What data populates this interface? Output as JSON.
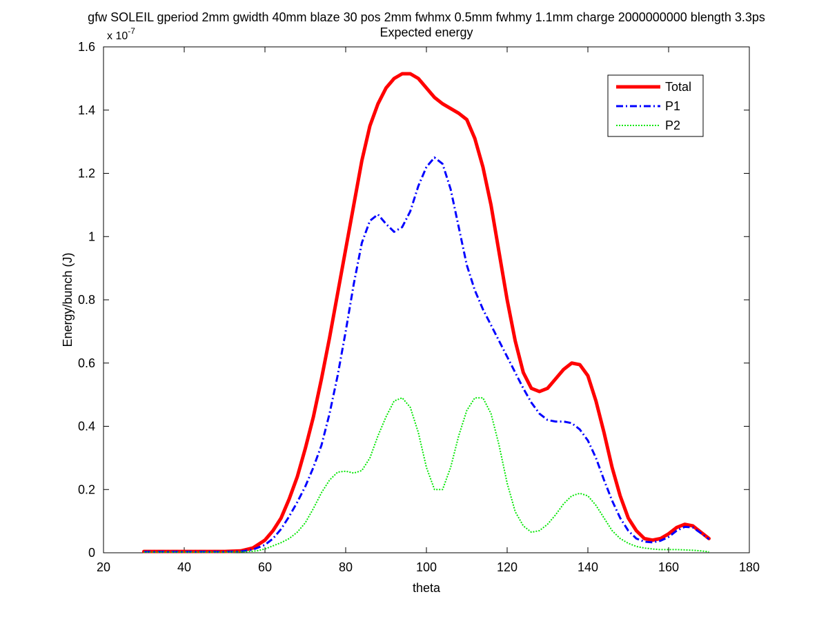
{
  "chart_data": {
    "type": "line",
    "title_line1": "gfw SOLEIL gperiod 2mm gwidth 40mm blaze 30 pos 2mm fwhmx 0.5mm fwhmy 1.1mm charge 2000000000 blength 3.3ps",
    "title_line2": "Expected energy",
    "xlabel": "theta",
    "ylabel": "Energy/bunch (J)",
    "y_multiplier_base": "x 10",
    "y_multiplier_exp": "-7",
    "xlim": [
      20,
      180
    ],
    "ylim": [
      0,
      1.6
    ],
    "xticks": [
      20,
      40,
      60,
      80,
      100,
      120,
      140,
      160,
      180
    ],
    "yticks": [
      0,
      0.2,
      0.4,
      0.6,
      0.8,
      1,
      1.2,
      1.4,
      1.6
    ],
    "xtick_labels": [
      "20",
      "40",
      "60",
      "80",
      "100",
      "120",
      "140",
      "160",
      "180"
    ],
    "ytick_labels": [
      "0",
      "0.2",
      "0.4",
      "0.6",
      "0.8",
      "1",
      "1.2",
      "1.4",
      "1.6"
    ],
    "grid": false,
    "legend_position": "top-right",
    "series": [
      {
        "name": "Total",
        "color": "#ff0000",
        "style": "solid",
        "points": [
          [
            30,
            0.004
          ],
          [
            40,
            0.004
          ],
          [
            50,
            0.004
          ],
          [
            54,
            0.006
          ],
          [
            57,
            0.015
          ],
          [
            60,
            0.04
          ],
          [
            62,
            0.07
          ],
          [
            64,
            0.11
          ],
          [
            66,
            0.17
          ],
          [
            68,
            0.24
          ],
          [
            70,
            0.33
          ],
          [
            72,
            0.43
          ],
          [
            74,
            0.55
          ],
          [
            76,
            0.68
          ],
          [
            78,
            0.82
          ],
          [
            80,
            0.96
          ],
          [
            82,
            1.1
          ],
          [
            84,
            1.24
          ],
          [
            86,
            1.35
          ],
          [
            88,
            1.42
          ],
          [
            90,
            1.47
          ],
          [
            92,
            1.5
          ],
          [
            94,
            1.515
          ],
          [
            96,
            1.515
          ],
          [
            98,
            1.5
          ],
          [
            100,
            1.47
          ],
          [
            102,
            1.44
          ],
          [
            104,
            1.42
          ],
          [
            106,
            1.405
          ],
          [
            108,
            1.39
          ],
          [
            110,
            1.37
          ],
          [
            112,
            1.31
          ],
          [
            114,
            1.22
          ],
          [
            116,
            1.1
          ],
          [
            118,
            0.95
          ],
          [
            120,
            0.8
          ],
          [
            122,
            0.67
          ],
          [
            124,
            0.57
          ],
          [
            126,
            0.52
          ],
          [
            128,
            0.51
          ],
          [
            130,
            0.52
          ],
          [
            132,
            0.55
          ],
          [
            134,
            0.58
          ],
          [
            136,
            0.6
          ],
          [
            138,
            0.595
          ],
          [
            140,
            0.56
          ],
          [
            142,
            0.48
          ],
          [
            144,
            0.38
          ],
          [
            146,
            0.27
          ],
          [
            148,
            0.18
          ],
          [
            150,
            0.11
          ],
          [
            152,
            0.07
          ],
          [
            154,
            0.045
          ],
          [
            156,
            0.04
          ],
          [
            158,
            0.045
          ],
          [
            160,
            0.06
          ],
          [
            162,
            0.08
          ],
          [
            164,
            0.09
          ],
          [
            166,
            0.085
          ],
          [
            168,
            0.065
          ],
          [
            170,
            0.045
          ]
        ]
      },
      {
        "name": "P1",
        "color": "#0000ff",
        "style": "dashdot",
        "points": [
          [
            30,
            0.003
          ],
          [
            40,
            0.003
          ],
          [
            50,
            0.003
          ],
          [
            54,
            0.004
          ],
          [
            57,
            0.01
          ],
          [
            60,
            0.025
          ],
          [
            62,
            0.045
          ],
          [
            64,
            0.075
          ],
          [
            66,
            0.115
          ],
          [
            68,
            0.16
          ],
          [
            70,
            0.21
          ],
          [
            72,
            0.27
          ],
          [
            74,
            0.34
          ],
          [
            76,
            0.44
          ],
          [
            78,
            0.56
          ],
          [
            80,
            0.7
          ],
          [
            82,
            0.85
          ],
          [
            84,
            0.98
          ],
          [
            86,
            1.05
          ],
          [
            88,
            1.07
          ],
          [
            90,
            1.04
          ],
          [
            92,
            1.015
          ],
          [
            94,
            1.03
          ],
          [
            96,
            1.08
          ],
          [
            98,
            1.16
          ],
          [
            100,
            1.22
          ],
          [
            102,
            1.25
          ],
          [
            104,
            1.23
          ],
          [
            106,
            1.15
          ],
          [
            108,
            1.03
          ],
          [
            110,
            0.91
          ],
          [
            112,
            0.83
          ],
          [
            114,
            0.77
          ],
          [
            116,
            0.72
          ],
          [
            118,
            0.67
          ],
          [
            120,
            0.62
          ],
          [
            122,
            0.57
          ],
          [
            124,
            0.52
          ],
          [
            126,
            0.475
          ],
          [
            128,
            0.44
          ],
          [
            130,
            0.42
          ],
          [
            132,
            0.415
          ],
          [
            134,
            0.415
          ],
          [
            136,
            0.41
          ],
          [
            138,
            0.39
          ],
          [
            140,
            0.355
          ],
          [
            142,
            0.3
          ],
          [
            144,
            0.23
          ],
          [
            146,
            0.165
          ],
          [
            148,
            0.11
          ],
          [
            150,
            0.07
          ],
          [
            152,
            0.045
          ],
          [
            154,
            0.035
          ],
          [
            156,
            0.033
          ],
          [
            158,
            0.038
          ],
          [
            160,
            0.05
          ],
          [
            162,
            0.07
          ],
          [
            164,
            0.082
          ],
          [
            166,
            0.08
          ],
          [
            168,
            0.062
          ],
          [
            170,
            0.043
          ]
        ]
      },
      {
        "name": "P2",
        "color": "#00e600",
        "style": "dotted",
        "points": [
          [
            30,
            0.002
          ],
          [
            40,
            0.002
          ],
          [
            50,
            0.002
          ],
          [
            55,
            0.003
          ],
          [
            58,
            0.006
          ],
          [
            60,
            0.012
          ],
          [
            62,
            0.022
          ],
          [
            64,
            0.032
          ],
          [
            66,
            0.045
          ],
          [
            68,
            0.065
          ],
          [
            70,
            0.095
          ],
          [
            72,
            0.14
          ],
          [
            74,
            0.19
          ],
          [
            76,
            0.23
          ],
          [
            78,
            0.255
          ],
          [
            80,
            0.258
          ],
          [
            82,
            0.252
          ],
          [
            84,
            0.26
          ],
          [
            86,
            0.3
          ],
          [
            88,
            0.37
          ],
          [
            90,
            0.43
          ],
          [
            92,
            0.48
          ],
          [
            94,
            0.49
          ],
          [
            96,
            0.46
          ],
          [
            98,
            0.38
          ],
          [
            100,
            0.27
          ],
          [
            102,
            0.2
          ],
          [
            104,
            0.2
          ],
          [
            106,
            0.27
          ],
          [
            108,
            0.37
          ],
          [
            110,
            0.45
          ],
          [
            112,
            0.49
          ],
          [
            114,
            0.49
          ],
          [
            116,
            0.44
          ],
          [
            118,
            0.34
          ],
          [
            120,
            0.22
          ],
          [
            122,
            0.13
          ],
          [
            124,
            0.085
          ],
          [
            126,
            0.065
          ],
          [
            128,
            0.07
          ],
          [
            130,
            0.09
          ],
          [
            132,
            0.12
          ],
          [
            134,
            0.155
          ],
          [
            136,
            0.18
          ],
          [
            138,
            0.188
          ],
          [
            140,
            0.18
          ],
          [
            142,
            0.15
          ],
          [
            144,
            0.11
          ],
          [
            146,
            0.07
          ],
          [
            148,
            0.045
          ],
          [
            150,
            0.03
          ],
          [
            152,
            0.02
          ],
          [
            154,
            0.015
          ],
          [
            156,
            0.012
          ],
          [
            158,
            0.01
          ],
          [
            160,
            0.01
          ],
          [
            162,
            0.01
          ],
          [
            164,
            0.009
          ],
          [
            166,
            0.008
          ],
          [
            168,
            0.006
          ],
          [
            170,
            0.003
          ]
        ]
      }
    ]
  }
}
